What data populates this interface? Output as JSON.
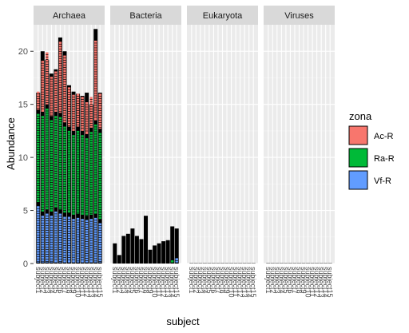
{
  "chart_data": {
    "type": "bar",
    "stacked": true,
    "facets": [
      "Archaea",
      "Bacteria",
      "Eukaryota",
      "Viruses"
    ],
    "xlabel": "subject",
    "ylabel": "Abundance",
    "ylim": [
      0,
      22.5
    ],
    "yticks": [
      0,
      5,
      10,
      15,
      20
    ],
    "x_tick_label": "subject",
    "subjects_per_facet": 15,
    "grid": true,
    "legend": {
      "title": "zona",
      "position": "right",
      "entries": [
        {
          "name": "Ac-R",
          "color": "#F8766D"
        },
        {
          "name": "Ra-R",
          "color": "#00BA38"
        },
        {
          "name": "Vf-R",
          "color": "#619CFF"
        }
      ]
    },
    "series": [
      {
        "facet": "Archaea",
        "totals": [
          16.1,
          20.0,
          19.2,
          17.9,
          18.3,
          21.3,
          20.0,
          16.8,
          16.2,
          16.0,
          15.8,
          16.1,
          15.0,
          22.1,
          16.1
        ],
        "vf_r": [
          5.3,
          4.4,
          4.6,
          4.4,
          4.8,
          4.6,
          4.3,
          4.3,
          4.1,
          4.2,
          4.1,
          4.0,
          4.1,
          4.2,
          3.7
        ],
        "ra_r": [
          8.3,
          9.0,
          9.5,
          8.6,
          8.6,
          8.7,
          8.1,
          7.7,
          7.5,
          7.8,
          7.5,
          7.3,
          7.8,
          8.4,
          8.1
        ],
        "ac_r": [
          1.7,
          4.8,
          4.9,
          3.7,
          3.8,
          6.7,
          6.3,
          3.7,
          3.4,
          3.1,
          3.2,
          3.0,
          2.9,
          7.5,
          3.3
        ]
      },
      {
        "facet": "Bacteria",
        "totals": [
          1.9,
          0.8,
          2.6,
          2.8,
          3.3,
          2.6,
          2.3,
          4.5,
          1.3,
          1.7,
          1.9,
          2.1,
          2.2,
          3.5,
          3.3
        ],
        "vf_r": [
          0,
          0,
          0,
          0,
          0,
          0,
          0,
          0,
          0,
          0,
          0,
          0,
          0,
          0,
          0.4
        ],
        "ra_r": [
          0,
          0,
          0,
          0,
          0,
          0,
          0,
          0,
          0,
          0,
          0,
          0,
          0,
          0.2,
          0
        ],
        "ac_r": [
          0,
          0,
          0,
          0,
          0,
          0,
          0,
          0,
          0,
          0,
          0,
          0,
          0,
          0,
          0
        ]
      },
      {
        "facet": "Eukaryota",
        "totals": [
          0.03,
          0.03,
          0.03,
          0.03,
          0.03,
          0.03,
          0.03,
          0.03,
          0.03,
          0.03,
          0.03,
          0.03,
          0.03,
          0.03,
          0.03
        ],
        "vf_r": [
          0,
          0,
          0,
          0,
          0,
          0,
          0,
          0,
          0,
          0,
          0,
          0,
          0,
          0,
          0
        ],
        "ra_r": [
          0,
          0,
          0,
          0,
          0,
          0,
          0,
          0,
          0,
          0,
          0,
          0,
          0,
          0,
          0
        ],
        "ac_r": [
          0,
          0,
          0,
          0,
          0,
          0,
          0,
          0,
          0,
          0,
          0,
          0,
          0,
          0,
          0
        ]
      },
      {
        "facet": "Viruses",
        "totals": [
          0.03,
          0.03,
          0.03,
          0.03,
          0.03,
          0.03,
          0.03,
          0.03,
          0.03,
          0.03,
          0.03,
          0.03,
          0.03,
          0.03,
          0.03
        ],
        "vf_r": [
          0,
          0,
          0,
          0,
          0,
          0,
          0,
          0,
          0,
          0,
          0,
          0,
          0,
          0,
          0
        ],
        "ra_r": [
          0,
          0,
          0,
          0,
          0,
          0,
          0,
          0,
          0,
          0,
          0,
          0,
          0,
          0,
          0
        ],
        "ac_r": [
          0,
          0,
          0,
          0,
          0,
          0,
          0,
          0,
          0,
          0,
          0,
          0,
          0,
          0,
          0
        ]
      }
    ]
  }
}
